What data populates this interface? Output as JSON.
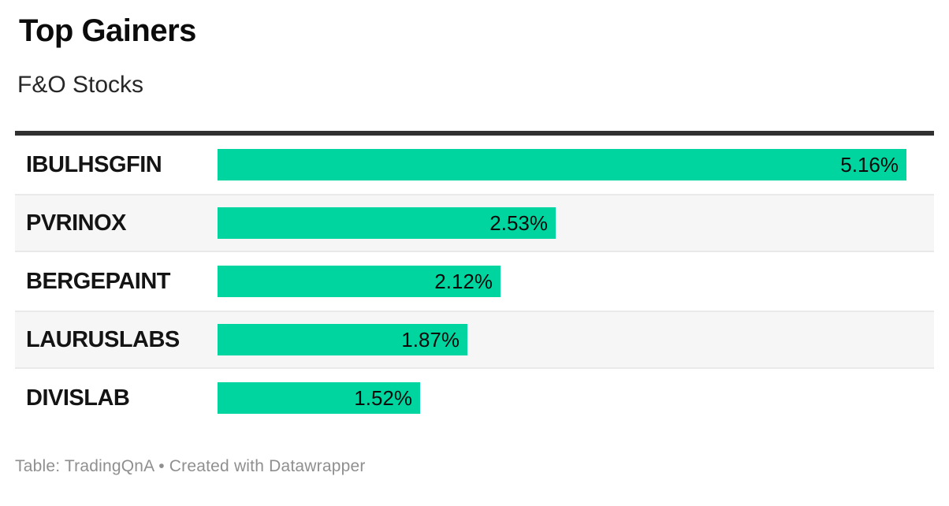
{
  "header": {
    "title": "Top Gainers",
    "subtitle": "F&O Stocks"
  },
  "footer": {
    "credit": "Table: TradingQnA • Created with Datawrapper"
  },
  "colors": {
    "bar": "#00d5a0",
    "rule": "#303030",
    "stripe": "#f6f6f6",
    "stripe_border": "#e9e9e9"
  },
  "chart_data": {
    "type": "bar",
    "orientation": "horizontal",
    "title": "Top Gainers",
    "subtitle": "F&O Stocks",
    "categories": [
      "IBULHSGFIN",
      "PVRINOX",
      "BERGEPAINT",
      "LAURUSLABS",
      "DIVISLAB"
    ],
    "values": [
      5.16,
      2.53,
      2.12,
      1.87,
      1.52
    ],
    "value_labels": [
      "5.16%",
      "2.53%",
      "2.12%",
      "1.87%",
      "1.52%"
    ],
    "unit": "%",
    "xlim": [
      0,
      5.16
    ],
    "grid": false,
    "legend": "none",
    "value_label_position": "inside-end",
    "row_striping": "alternate"
  }
}
